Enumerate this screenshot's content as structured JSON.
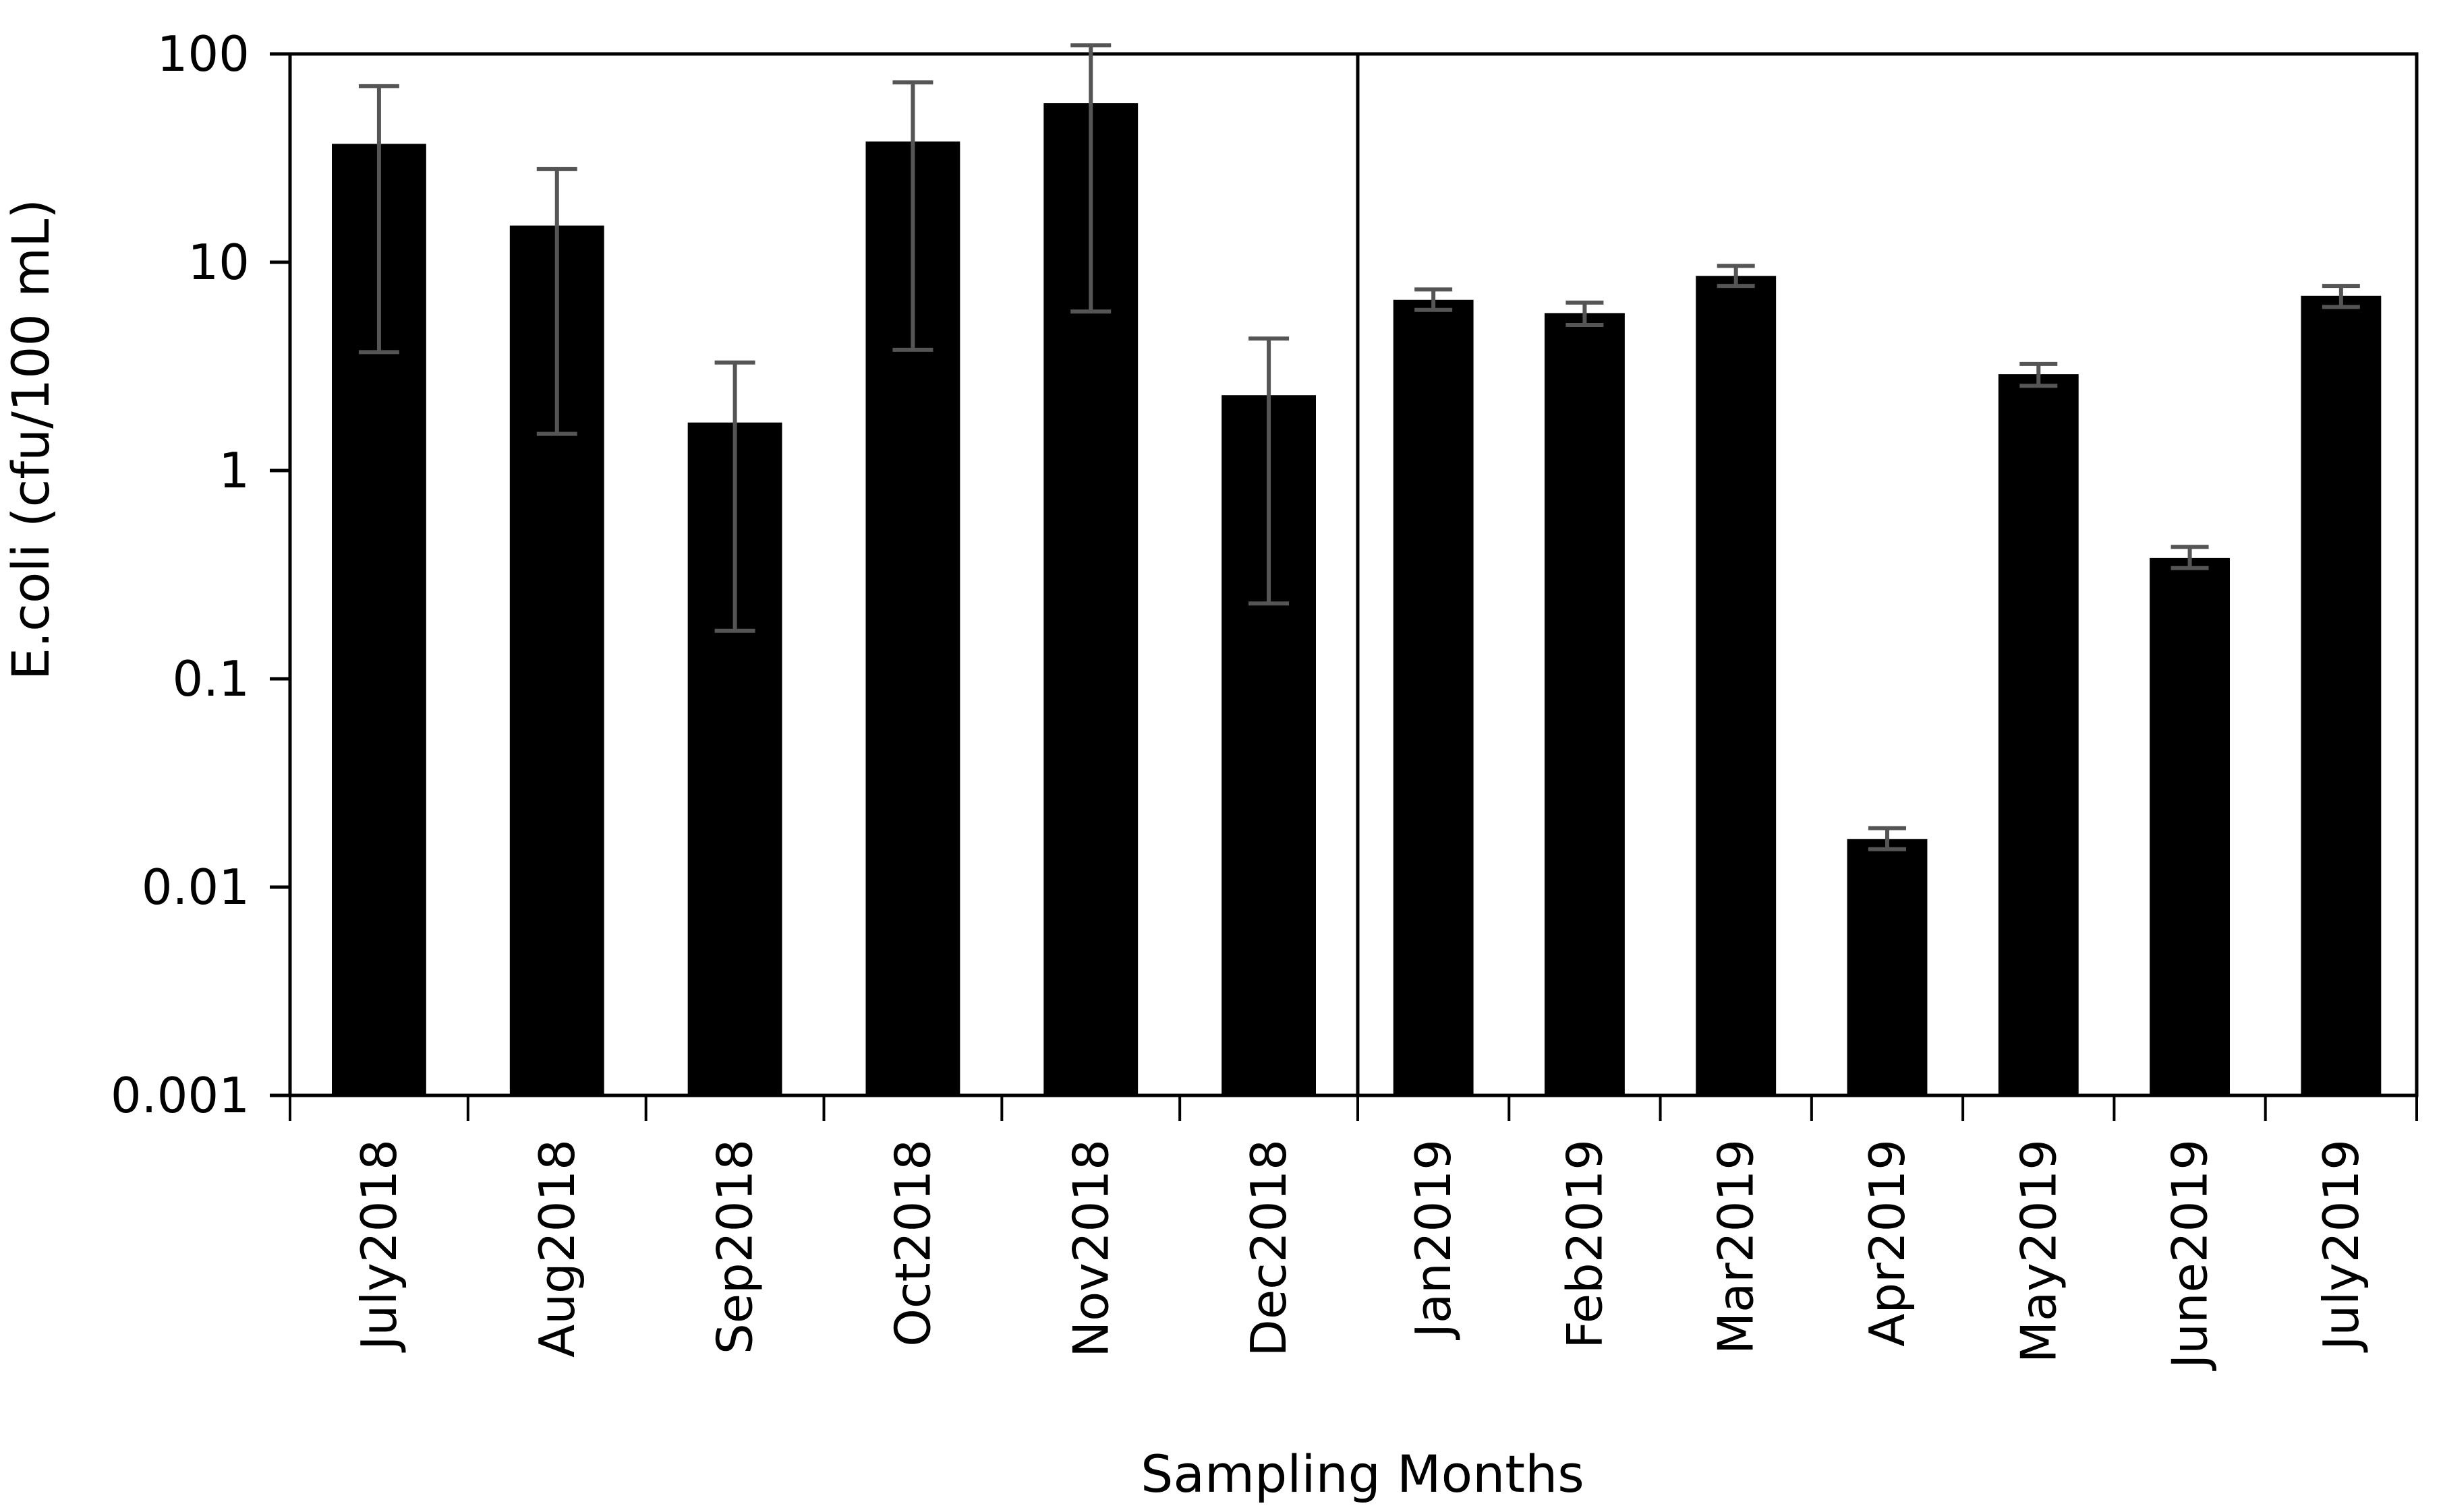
{
  "chart_data": {
    "type": "bar",
    "xlabel": "Sampling Months",
    "ylabel": "E.coli (cfu/100 mL)",
    "yscale": "log",
    "ylim": [
      0.001,
      100
    ],
    "yticks": [
      {
        "value": 100,
        "label": "100"
      },
      {
        "value": 10,
        "label": "10"
      },
      {
        "value": 1,
        "label": "1"
      },
      {
        "value": 0.1,
        "label": "0.1"
      },
      {
        "value": 0.01,
        "label": "0.01"
      },
      {
        "value": 0.001,
        "label": "0.001"
      }
    ],
    "bar_color": "#000000",
    "error_bar_color": "#555555",
    "grid": false,
    "panels": [
      {
        "categories": [
          "July2018",
          "Aug2018",
          "Sep2018",
          "Oct2018",
          "Nov2018",
          "Dec2018"
        ],
        "values": [
          37,
          15,
          1.7,
          38,
          58,
          2.3
        ],
        "error_low": [
          3.7,
          1.5,
          0.17,
          3.8,
          5.8,
          0.23
        ],
        "error_high": [
          70,
          28,
          3.3,
          73,
          110,
          4.3
        ]
      },
      {
        "categories": [
          "Jan2019",
          "Feb2019",
          "Mar2019",
          "Apr2019",
          "May2019",
          "June2019",
          "July2019"
        ],
        "values": [
          6.6,
          5.7,
          8.6,
          0.017,
          2.9,
          0.38,
          6.9
        ],
        "error_low": [
          5.9,
          5.0,
          7.7,
          0.0152,
          2.55,
          0.34,
          6.1
        ],
        "error_high": [
          7.4,
          6.4,
          9.6,
          0.0192,
          3.25,
          0.43,
          7.7
        ]
      }
    ]
  }
}
